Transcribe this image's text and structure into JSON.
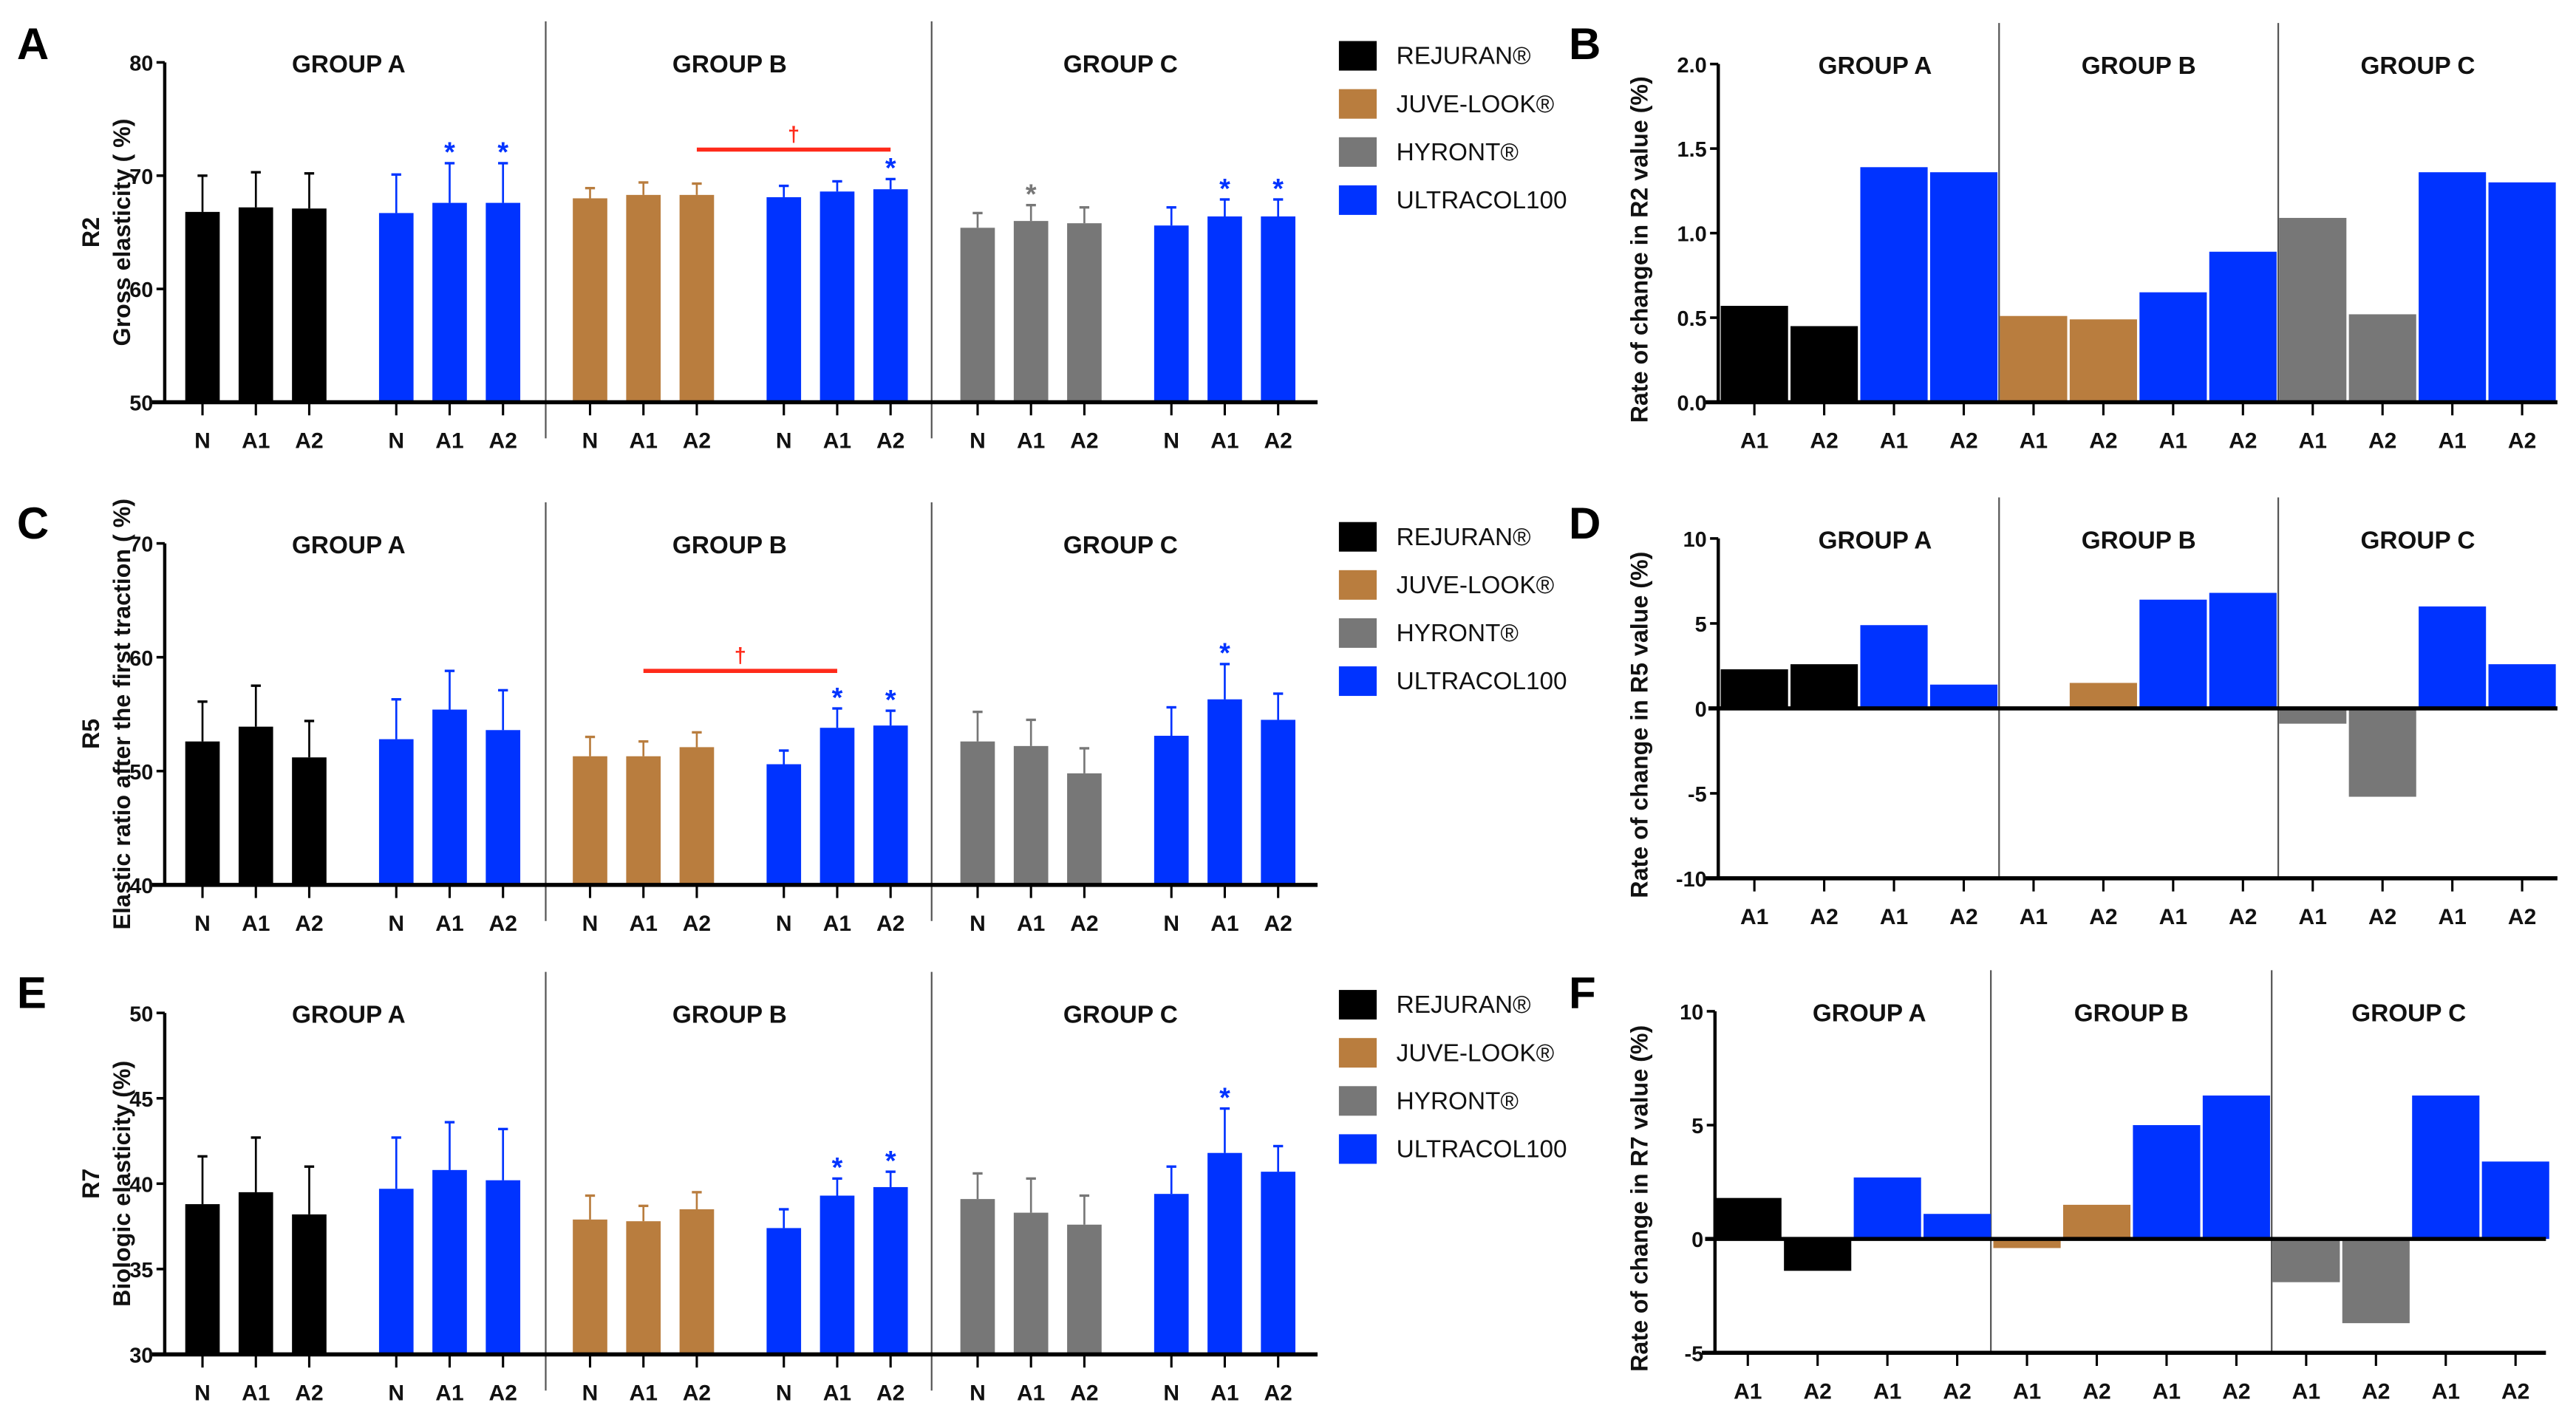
{
  "colors": {
    "REJURAN": "#000000",
    "JUVE-LOOK": "#b97d3e",
    "HYRONT": "#777777",
    "ULTRACOL100": "#0033ff",
    "dagger": "#ff2a1a"
  },
  "legend": [
    {
      "key": "REJURAN",
      "label": "REJURAN®"
    },
    {
      "key": "JUVE-LOOK",
      "label": "JUVE-LOOK®"
    },
    {
      "key": "HYRONT",
      "label": "HYRONT®"
    },
    {
      "key": "ULTRACOL100",
      "label": "ULTRACOL100"
    }
  ],
  "chart_data": [
    {
      "panel": "A",
      "type": "bar",
      "title": "",
      "ytitle": "R2",
      "ylabel": "Gross elasticity ( %)",
      "ylim": [
        50,
        80
      ],
      "yticks": [
        "50",
        "60",
        "70",
        "80"
      ],
      "ytick_values": [
        50,
        60,
        70,
        80
      ],
      "groups": [
        "GROUP A",
        "GROUP B",
        "GROUP C"
      ],
      "bars": [
        {
          "group": "GROUP A",
          "product": "REJURAN",
          "label": "N",
          "mean": 66.8,
          "sd": 3.2,
          "sig": ""
        },
        {
          "group": "GROUP A",
          "product": "REJURAN",
          "label": "A1",
          "mean": 67.2,
          "sd": 3.1,
          "sig": ""
        },
        {
          "group": "GROUP A",
          "product": "REJURAN",
          "label": "A2",
          "mean": 67.1,
          "sd": 3.1,
          "sig": ""
        },
        {
          "group": "GROUP A",
          "product": "ULTRACOL100",
          "label": "N",
          "mean": 66.7,
          "sd": 3.4,
          "sig": ""
        },
        {
          "group": "GROUP A",
          "product": "ULTRACOL100",
          "label": "A1",
          "mean": 67.6,
          "sd": 3.5,
          "sig": "*"
        },
        {
          "group": "GROUP A",
          "product": "ULTRACOL100",
          "label": "A2",
          "mean": 67.6,
          "sd": 3.5,
          "sig": "*"
        },
        {
          "group": "GROUP B",
          "product": "JUVE-LOOK",
          "label": "N",
          "mean": 68.0,
          "sd": 0.9,
          "sig": ""
        },
        {
          "group": "GROUP B",
          "product": "JUVE-LOOK",
          "label": "A1",
          "mean": 68.3,
          "sd": 1.1,
          "sig": ""
        },
        {
          "group": "GROUP B",
          "product": "JUVE-LOOK",
          "label": "A2",
          "mean": 68.3,
          "sd": 1.0,
          "sig": ""
        },
        {
          "group": "GROUP B",
          "product": "ULTRACOL100",
          "label": "N",
          "mean": 68.1,
          "sd": 1.0,
          "sig": ""
        },
        {
          "group": "GROUP B",
          "product": "ULTRACOL100",
          "label": "A1",
          "mean": 68.6,
          "sd": 0.9,
          "sig": ""
        },
        {
          "group": "GROUP B",
          "product": "ULTRACOL100",
          "label": "A2",
          "mean": 68.8,
          "sd": 0.9,
          "sig": "*"
        },
        {
          "group": "GROUP C",
          "product": "HYRONT",
          "label": "N",
          "mean": 65.4,
          "sd": 1.3,
          "sig": ""
        },
        {
          "group": "GROUP C",
          "product": "HYRONT",
          "label": "A1",
          "mean": 66.0,
          "sd": 1.4,
          "sig": "*"
        },
        {
          "group": "GROUP C",
          "product": "HYRONT",
          "label": "A2",
          "mean": 65.8,
          "sd": 1.4,
          "sig": ""
        },
        {
          "group": "GROUP C",
          "product": "ULTRACOL100",
          "label": "N",
          "mean": 65.6,
          "sd": 1.6,
          "sig": ""
        },
        {
          "group": "GROUP C",
          "product": "ULTRACOL100",
          "label": "A1",
          "mean": 66.4,
          "sd": 1.5,
          "sig": "*"
        },
        {
          "group": "GROUP C",
          "product": "ULTRACOL100",
          "label": "A2",
          "mean": 66.4,
          "sd": 1.5,
          "sig": "*"
        }
      ],
      "annotations": [
        {
          "type": "bracket",
          "from_bar": 8,
          "to_bar": 11,
          "symbol": "†",
          "value": 72.3
        }
      ]
    },
    {
      "panel": "B",
      "type": "bar",
      "ylabel": "Rate of change in R2 value (%)",
      "ylim": [
        0,
        2.0
      ],
      "yticks": [
        "0.0",
        "0.5",
        "1.0",
        "1.5",
        "2.0"
      ],
      "ytick_values": [
        0,
        0.5,
        1.0,
        1.5,
        2.0
      ],
      "groups": [
        "GROUP A",
        "GROUP B",
        "GROUP C"
      ],
      "bars": [
        {
          "group": "GROUP A",
          "product": "REJURAN",
          "label": "A1",
          "value": 0.57
        },
        {
          "group": "GROUP A",
          "product": "REJURAN",
          "label": "A2",
          "value": 0.45
        },
        {
          "group": "GROUP A",
          "product": "ULTRACOL100",
          "label": "A1",
          "value": 1.39
        },
        {
          "group": "GROUP A",
          "product": "ULTRACOL100",
          "label": "A2",
          "value": 1.36
        },
        {
          "group": "GROUP B",
          "product": "JUVE-LOOK",
          "label": "A1",
          "value": 0.51
        },
        {
          "group": "GROUP B",
          "product": "JUVE-LOOK",
          "label": "A2",
          "value": 0.49
        },
        {
          "group": "GROUP B",
          "product": "ULTRACOL100",
          "label": "A1",
          "value": 0.65
        },
        {
          "group": "GROUP B",
          "product": "ULTRACOL100",
          "label": "A2",
          "value": 0.89
        },
        {
          "group": "GROUP C",
          "product": "HYRONT",
          "label": "A1",
          "value": 1.09
        },
        {
          "group": "GROUP C",
          "product": "HYRONT",
          "label": "A2",
          "value": 0.52
        },
        {
          "group": "GROUP C",
          "product": "ULTRACOL100",
          "label": "A1",
          "value": 1.36
        },
        {
          "group": "GROUP C",
          "product": "ULTRACOL100",
          "label": "A2",
          "value": 1.3
        }
      ]
    },
    {
      "panel": "C",
      "type": "bar",
      "ytitle": "R5",
      "ylabel": "Elastic ratio after the first traction ( %)",
      "ylim": [
        40,
        70
      ],
      "yticks": [
        "40",
        "50",
        "60",
        "70"
      ],
      "ytick_values": [
        40,
        50,
        60,
        70
      ],
      "groups": [
        "GROUP A",
        "GROUP B",
        "GROUP C"
      ],
      "bars": [
        {
          "group": "GROUP A",
          "product": "REJURAN",
          "label": "N",
          "mean": 52.6,
          "sd": 3.5,
          "sig": ""
        },
        {
          "group": "GROUP A",
          "product": "REJURAN",
          "label": "A1",
          "mean": 53.9,
          "sd": 3.6,
          "sig": ""
        },
        {
          "group": "GROUP A",
          "product": "REJURAN",
          "label": "A2",
          "mean": 51.2,
          "sd": 3.2,
          "sig": ""
        },
        {
          "group": "GROUP A",
          "product": "ULTRACOL100",
          "label": "N",
          "mean": 52.8,
          "sd": 3.5,
          "sig": ""
        },
        {
          "group": "GROUP A",
          "product": "ULTRACOL100",
          "label": "A1",
          "mean": 55.4,
          "sd": 3.4,
          "sig": ""
        },
        {
          "group": "GROUP A",
          "product": "ULTRACOL100",
          "label": "A2",
          "mean": 53.6,
          "sd": 3.5,
          "sig": ""
        },
        {
          "group": "GROUP B",
          "product": "JUVE-LOOK",
          "label": "N",
          "mean": 51.3,
          "sd": 1.7,
          "sig": ""
        },
        {
          "group": "GROUP B",
          "product": "JUVE-LOOK",
          "label": "A1",
          "mean": 51.3,
          "sd": 1.3,
          "sig": ""
        },
        {
          "group": "GROUP B",
          "product": "JUVE-LOOK",
          "label": "A2",
          "mean": 52.1,
          "sd": 1.3,
          "sig": ""
        },
        {
          "group": "GROUP B",
          "product": "ULTRACOL100",
          "label": "N",
          "mean": 50.6,
          "sd": 1.2,
          "sig": ""
        },
        {
          "group": "GROUP B",
          "product": "ULTRACOL100",
          "label": "A1",
          "mean": 53.8,
          "sd": 1.7,
          "sig": "*"
        },
        {
          "group": "GROUP B",
          "product": "ULTRACOL100",
          "label": "A2",
          "mean": 54.0,
          "sd": 1.3,
          "sig": "*"
        },
        {
          "group": "GROUP C",
          "product": "HYRONT",
          "label": "N",
          "mean": 52.6,
          "sd": 2.6,
          "sig": ""
        },
        {
          "group": "GROUP C",
          "product": "HYRONT",
          "label": "A1",
          "mean": 52.2,
          "sd": 2.3,
          "sig": ""
        },
        {
          "group": "GROUP C",
          "product": "HYRONT",
          "label": "A2",
          "mean": 49.8,
          "sd": 2.2,
          "sig": ""
        },
        {
          "group": "GROUP C",
          "product": "ULTRACOL100",
          "label": "N",
          "mean": 53.1,
          "sd": 2.5,
          "sig": ""
        },
        {
          "group": "GROUP C",
          "product": "ULTRACOL100",
          "label": "A1",
          "mean": 56.3,
          "sd": 3.1,
          "sig": "*"
        },
        {
          "group": "GROUP C",
          "product": "ULTRACOL100",
          "label": "A2",
          "mean": 54.5,
          "sd": 2.3,
          "sig": ""
        }
      ],
      "annotations": [
        {
          "type": "bracket",
          "from_bar": 7,
          "to_bar": 10,
          "symbol": "†",
          "value": 58.8
        }
      ]
    },
    {
      "panel": "D",
      "type": "bar",
      "ylabel": "Rate of change in R5 value (%)",
      "ylim": [
        -10,
        10
      ],
      "yticks": [
        "-10",
        "-5",
        "0",
        "5",
        "10"
      ],
      "ytick_values": [
        -10,
        -5,
        0,
        5,
        10
      ],
      "groups": [
        "GROUP A",
        "GROUP B",
        "GROUP C"
      ],
      "bars": [
        {
          "group": "GROUP A",
          "product": "REJURAN",
          "label": "A1",
          "value": 2.3
        },
        {
          "group": "GROUP A",
          "product": "REJURAN",
          "label": "A2",
          "value": 2.6
        },
        {
          "group": "GROUP A",
          "product": "ULTRACOL100",
          "label": "A1",
          "value": 4.9
        },
        {
          "group": "GROUP A",
          "product": "ULTRACOL100",
          "label": "A2",
          "value": 1.4
        },
        {
          "group": "GROUP B",
          "product": "JUVE-LOOK",
          "label": "A1",
          "value": 0.0
        },
        {
          "group": "GROUP B",
          "product": "JUVE-LOOK",
          "label": "A2",
          "value": 1.5
        },
        {
          "group": "GROUP B",
          "product": "ULTRACOL100",
          "label": "A1",
          "value": 6.4
        },
        {
          "group": "GROUP B",
          "product": "ULTRACOL100",
          "label": "A2",
          "value": 6.8
        },
        {
          "group": "GROUP C",
          "product": "HYRONT",
          "label": "A1",
          "value": -0.9
        },
        {
          "group": "GROUP C",
          "product": "HYRONT",
          "label": "A2",
          "value": -5.2
        },
        {
          "group": "GROUP C",
          "product": "ULTRACOL100",
          "label": "A1",
          "value": 6.0
        },
        {
          "group": "GROUP C",
          "product": "ULTRACOL100",
          "label": "A2",
          "value": 2.6
        }
      ]
    },
    {
      "panel": "E",
      "type": "bar",
      "ytitle": "R7",
      "ylabel": "Biologic elasticity (%)",
      "ylim": [
        30,
        50
      ],
      "yticks": [
        "30",
        "35",
        "40",
        "45",
        "50"
      ],
      "ytick_values": [
        30,
        35,
        40,
        45,
        50
      ],
      "groups": [
        "GROUP A",
        "GROUP B",
        "GROUP C"
      ],
      "bars": [
        {
          "group": "GROUP A",
          "product": "REJURAN",
          "label": "N",
          "mean": 38.8,
          "sd": 2.8,
          "sig": ""
        },
        {
          "group": "GROUP A",
          "product": "REJURAN",
          "label": "A1",
          "mean": 39.5,
          "sd": 3.2,
          "sig": ""
        },
        {
          "group": "GROUP A",
          "product": "REJURAN",
          "label": "A2",
          "mean": 38.2,
          "sd": 2.8,
          "sig": ""
        },
        {
          "group": "GROUP A",
          "product": "ULTRACOL100",
          "label": "N",
          "mean": 39.7,
          "sd": 3.0,
          "sig": ""
        },
        {
          "group": "GROUP A",
          "product": "ULTRACOL100",
          "label": "A1",
          "mean": 40.8,
          "sd": 2.8,
          "sig": ""
        },
        {
          "group": "GROUP A",
          "product": "ULTRACOL100",
          "label": "A2",
          "mean": 40.2,
          "sd": 3.0,
          "sig": ""
        },
        {
          "group": "GROUP B",
          "product": "JUVE-LOOK",
          "label": "N",
          "mean": 37.9,
          "sd": 1.4,
          "sig": ""
        },
        {
          "group": "GROUP B",
          "product": "JUVE-LOOK",
          "label": "A1",
          "mean": 37.8,
          "sd": 0.9,
          "sig": ""
        },
        {
          "group": "GROUP B",
          "product": "JUVE-LOOK",
          "label": "A2",
          "mean": 38.5,
          "sd": 1.0,
          "sig": ""
        },
        {
          "group": "GROUP B",
          "product": "ULTRACOL100",
          "label": "N",
          "mean": 37.4,
          "sd": 1.1,
          "sig": ""
        },
        {
          "group": "GROUP B",
          "product": "ULTRACOL100",
          "label": "A1",
          "mean": 39.3,
          "sd": 1.0,
          "sig": "*"
        },
        {
          "group": "GROUP B",
          "product": "ULTRACOL100",
          "label": "A2",
          "mean": 39.8,
          "sd": 0.9,
          "sig": "*"
        },
        {
          "group": "GROUP C",
          "product": "HYRONT",
          "label": "N",
          "mean": 39.1,
          "sd": 1.5,
          "sig": ""
        },
        {
          "group": "GROUP C",
          "product": "HYRONT",
          "label": "A1",
          "mean": 38.3,
          "sd": 2.0,
          "sig": ""
        },
        {
          "group": "GROUP C",
          "product": "HYRONT",
          "label": "A2",
          "mean": 37.6,
          "sd": 1.7,
          "sig": ""
        },
        {
          "group": "GROUP C",
          "product": "ULTRACOL100",
          "label": "N",
          "mean": 39.4,
          "sd": 1.6,
          "sig": ""
        },
        {
          "group": "GROUP C",
          "product": "ULTRACOL100",
          "label": "A1",
          "mean": 41.8,
          "sd": 2.6,
          "sig": "*"
        },
        {
          "group": "GROUP C",
          "product": "ULTRACOL100",
          "label": "A2",
          "mean": 40.7,
          "sd": 1.5,
          "sig": ""
        }
      ],
      "annotations": []
    },
    {
      "panel": "F",
      "type": "bar",
      "ylabel": "Rate of change in R7 value (%)",
      "ylim": [
        -5,
        10
      ],
      "yticks": [
        "-5",
        "0",
        "5",
        "10"
      ],
      "ytick_values": [
        -5,
        0,
        5,
        10
      ],
      "groups": [
        "GROUP A",
        "GROUP B",
        "GROUP C"
      ],
      "bars": [
        {
          "group": "GROUP A",
          "product": "REJURAN",
          "label": "A1",
          "value": 1.8
        },
        {
          "group": "GROUP A",
          "product": "REJURAN",
          "label": "A2",
          "value": -1.4
        },
        {
          "group": "GROUP A",
          "product": "ULTRACOL100",
          "label": "A1",
          "value": 2.7
        },
        {
          "group": "GROUP A",
          "product": "ULTRACOL100",
          "label": "A2",
          "value": 1.1
        },
        {
          "group": "GROUP B",
          "product": "JUVE-LOOK",
          "label": "A1",
          "value": -0.4
        },
        {
          "group": "GROUP B",
          "product": "JUVE-LOOK",
          "label": "A2",
          "value": 1.5
        },
        {
          "group": "GROUP B",
          "product": "ULTRACOL100",
          "label": "A1",
          "value": 5.0
        },
        {
          "group": "GROUP B",
          "product": "ULTRACOL100",
          "label": "A2",
          "value": 6.3
        },
        {
          "group": "GROUP C",
          "product": "HYRONT",
          "label": "A1",
          "value": -1.9
        },
        {
          "group": "GROUP C",
          "product": "HYRONT",
          "label": "A2",
          "value": -3.7
        },
        {
          "group": "GROUP C",
          "product": "ULTRACOL100",
          "label": "A1",
          "value": 6.3
        },
        {
          "group": "GROUP C",
          "product": "ULTRACOL100",
          "label": "A2",
          "value": 3.4
        }
      ]
    }
  ]
}
